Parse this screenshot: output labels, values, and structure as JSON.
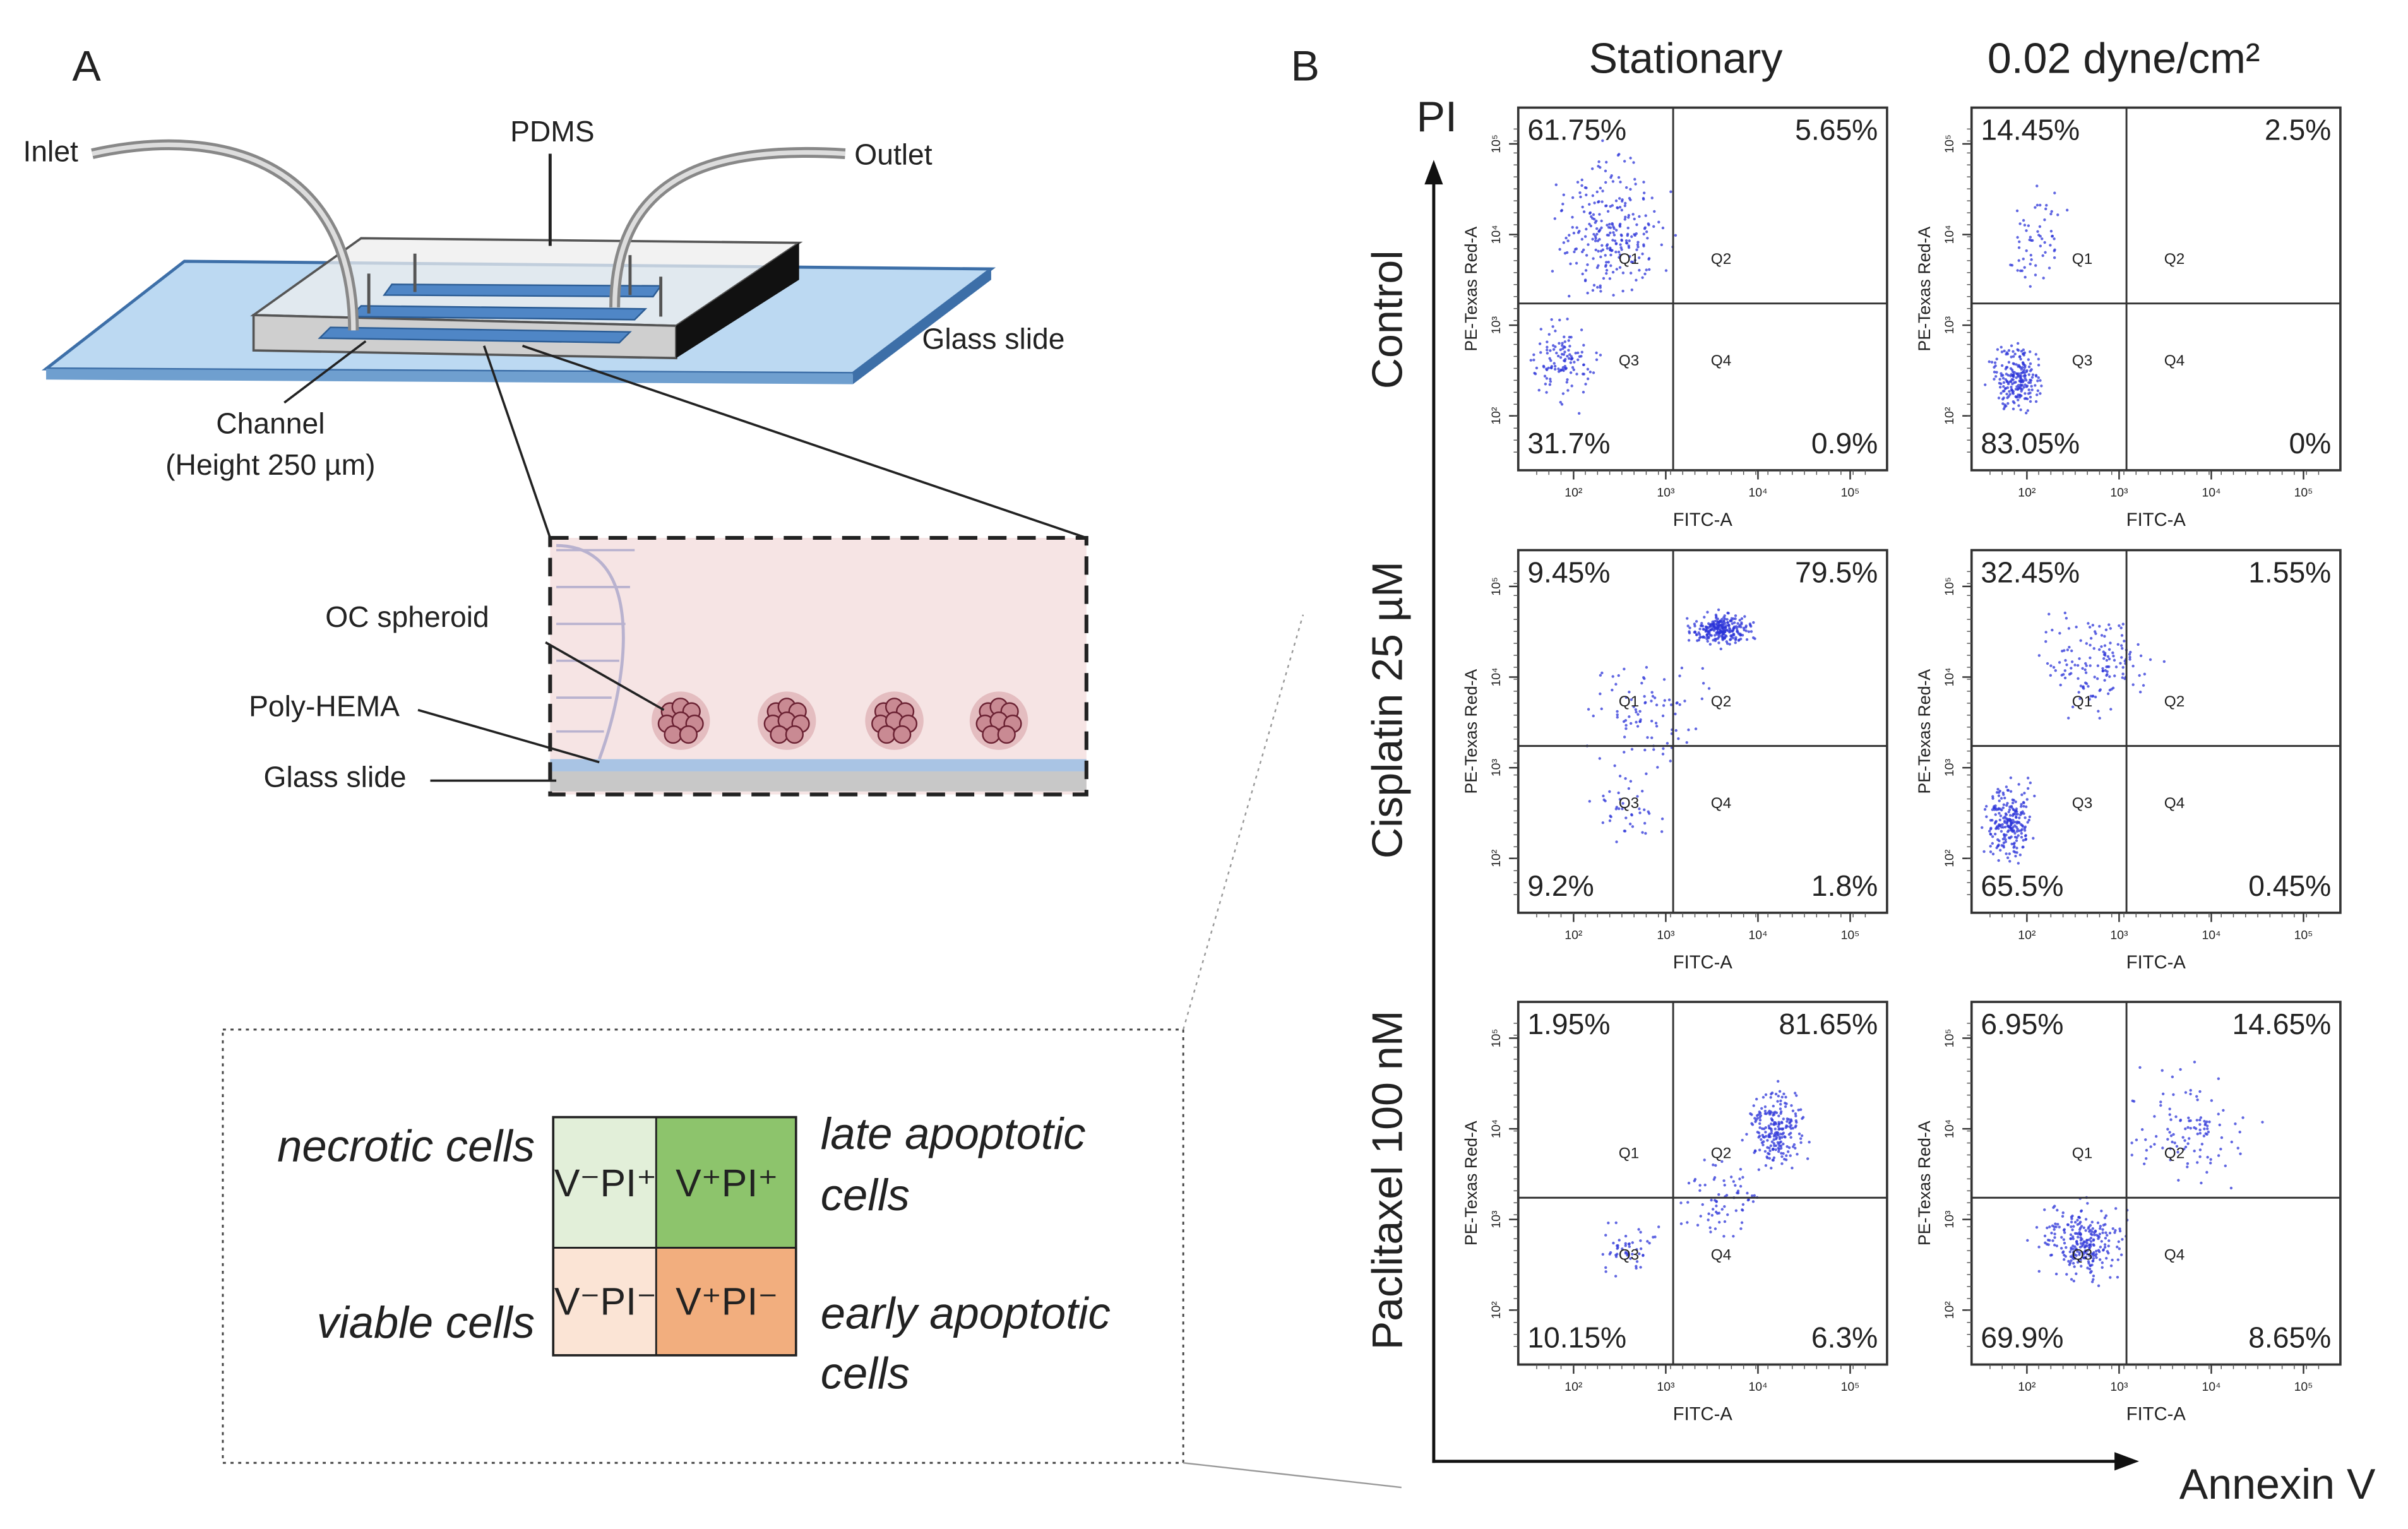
{
  "panel_a": {
    "label": "A",
    "inlet": "Inlet",
    "pdms": "PDMS",
    "outlet": "Outlet",
    "glass_slide": "Glass slide",
    "channel": "Channel",
    "channel_height": "(Height 250 µm)",
    "oc_spheroid": "OC spheroid",
    "poly_hema": "Poly-HEMA",
    "glass_slide_inset": "Glass slide"
  },
  "legend": {
    "necrotic": "necrotic cells",
    "viable": "viable cells",
    "late": [
      "late apoptotic",
      "cells"
    ],
    "early": [
      "early apoptotic",
      "cells"
    ],
    "quadrants": [
      "V⁻PI⁺",
      "V⁺PI⁺",
      "V⁻PI⁻",
      "V⁺PI⁻"
    ]
  },
  "panel_b": {
    "label": "B",
    "columns": [
      "Stationary",
      "0.02 dyne/cm²"
    ],
    "rows": [
      "Control",
      "Cisplatin 25 µM",
      "Paclitaxel 100 nM"
    ],
    "y_axis": "PI",
    "x_axis": "Annexin V",
    "plot_x_label": "FITC-A",
    "plot_y_label": "PE-Texas Red-A",
    "gates": [
      "Q1",
      "Q2",
      "Q3",
      "Q4"
    ],
    "tick_labels": [
      "10²",
      "10³",
      "10⁴",
      "10⁵"
    ],
    "plots": [
      [
        [
          "61.75%",
          "5.65%",
          "31.7%",
          "0.9%"
        ],
        [
          "14.45%",
          "2.5%",
          "83.05%",
          "0%"
        ]
      ],
      [
        [
          "9.45%",
          "79.5%",
          "9.2%",
          "1.8%"
        ],
        [
          "32.45%",
          "1.55%",
          "65.5%",
          "0.45%"
        ]
      ],
      [
        [
          "1.95%",
          "81.65%",
          "10.15%",
          "6.3%"
        ],
        [
          "6.95%",
          "14.65%",
          "69.9%",
          "8.65%"
        ]
      ]
    ]
  }
}
